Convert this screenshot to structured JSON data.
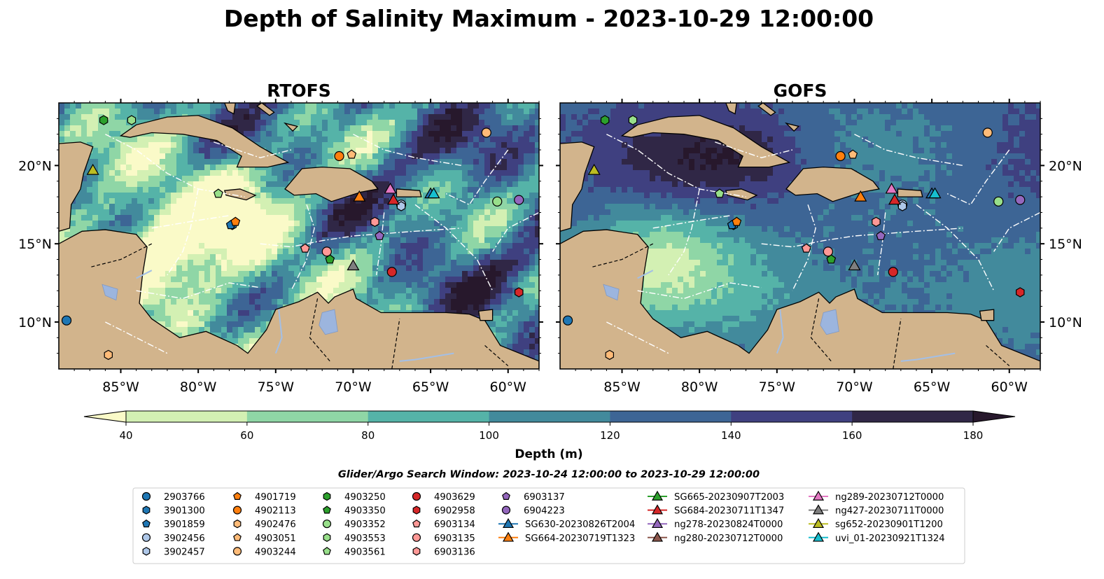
{
  "figure": {
    "title": "Depth of Salinity Maximum - 2023-10-29 12:00:00",
    "search_window": "Glider/Argo Search Window: 2023-10-24 12:00:00 to 2023-10-29 12:00:00"
  },
  "chart_data": [
    {
      "type": "heatmap",
      "title": "RTOFS",
      "map_extent": {
        "lon": [
          -89,
          -58
        ],
        "lat": [
          7,
          24
        ]
      },
      "xticks": [
        "85°W",
        "80°W",
        "75°W",
        "70°W",
        "65°W",
        "60°W"
      ],
      "yticks": [
        "10°N",
        "15°N",
        "20°N"
      ],
      "field_description": "gridded depth of salinity maximum (m)"
    },
    {
      "type": "heatmap",
      "title": "GOFS",
      "map_extent": {
        "lon": [
          -89,
          -58
        ],
        "lat": [
          7,
          24
        ]
      },
      "xticks": [
        "85°W",
        "80°W",
        "75°W",
        "70°W",
        "65°W",
        "60°W"
      ],
      "yticks": [
        "10°N",
        "15°N",
        "20°N"
      ],
      "field_description": "gridded depth of salinity maximum (m)"
    }
  ],
  "colorbar": {
    "label": "Depth (m)",
    "ticks": [
      "40",
      "60",
      "80",
      "100",
      "120",
      "140",
      "160",
      "180"
    ],
    "range": [
      40,
      180
    ],
    "extend": "both",
    "colors": [
      "#fafac8",
      "#d3f0b3",
      "#8fd6a6",
      "#55b3a8",
      "#428a9c",
      "#3d6595",
      "#3f4080",
      "#302746",
      "#27182c"
    ]
  },
  "map_colors": {
    "land": "#d2b48c",
    "lakes": "#9cb5de",
    "rivers": "#a3bfe6"
  },
  "platforms": [
    {
      "id": "2903766",
      "marker": "circle",
      "color": "#1f77b4",
      "lon": -88.5,
      "lat": 10.1
    },
    {
      "id": "3901300",
      "marker": "hexagon",
      "color": "#1f77b4",
      "lon": -77.8,
      "lat": 16.2
    },
    {
      "id": "3901859",
      "marker": "pentagon",
      "color": "#1f77b4",
      "lon": -77.9,
      "lat": 16.2
    },
    {
      "id": "3902456",
      "marker": "circle",
      "color": "#aec7e8",
      "lon": -66.9,
      "lat": 17.5
    },
    {
      "id": "3902457",
      "marker": "hexagon",
      "color": "#aec7e8",
      "lon": -66.9,
      "lat": 17.4
    },
    {
      "id": "4901719",
      "marker": "pentagon",
      "color": "#ff7f0e",
      "lon": -77.6,
      "lat": 16.4
    },
    {
      "id": "4902113",
      "marker": "circle",
      "color": "#ff7f0e",
      "lon": -70.9,
      "lat": 20.6
    },
    {
      "id": "4902476",
      "marker": "hexagon",
      "color": "#ffbb78",
      "lon": -85.8,
      "lat": 7.9
    },
    {
      "id": "4903051",
      "marker": "pentagon",
      "color": "#ffbb78",
      "lon": -70.1,
      "lat": 20.7
    },
    {
      "id": "4903244",
      "marker": "circle",
      "color": "#ffbb78",
      "lon": -61.4,
      "lat": 22.1
    },
    {
      "id": "4903250",
      "marker": "hexagon",
      "color": "#2ca02c",
      "lon": -86.1,
      "lat": 22.9
    },
    {
      "id": "4903350",
      "marker": "pentagon",
      "color": "#2ca02c",
      "lon": -71.5,
      "lat": 14.0
    },
    {
      "id": "4903352",
      "marker": "circle",
      "color": "#98df8a",
      "lon": -60.7,
      "lat": 17.7
    },
    {
      "id": "4903553",
      "marker": "hexagon",
      "color": "#98df8a",
      "lon": -84.3,
      "lat": 22.9
    },
    {
      "id": "4903561",
      "marker": "pentagon",
      "color": "#98df8a",
      "lon": -78.7,
      "lat": 18.2
    },
    {
      "id": "4903629",
      "marker": "circle",
      "color": "#d62728",
      "lon": -67.5,
      "lat": 13.2
    },
    {
      "id": "6902958",
      "marker": "hexagon",
      "color": "#d62728",
      "lon": -59.3,
      "lat": 11.9
    },
    {
      "id": "6903134",
      "marker": "pentagon",
      "color": "#ff9896",
      "lon": -73.1,
      "lat": 14.7
    },
    {
      "id": "6903135",
      "marker": "circle",
      "color": "#ff9896",
      "lon": -71.7,
      "lat": 14.5
    },
    {
      "id": "6903136",
      "marker": "hexagon",
      "color": "#ff9896",
      "lon": -68.6,
      "lat": 16.4
    },
    {
      "id": "6903137",
      "marker": "pentagon",
      "color": "#9467bd",
      "lon": -68.3,
      "lat": 15.5
    },
    {
      "id": "6904223",
      "marker": "circle",
      "color": "#9467bd",
      "lon": -59.3,
      "lat": 17.8
    }
  ],
  "gliders": [
    {
      "id": "SG630-20230826T2004",
      "color": "#1f77b4",
      "lon": -65.0,
      "lat": 18.2
    },
    {
      "id": "SG664-20230719T1323",
      "color": "#ff7f0e",
      "lon": -69.6,
      "lat": 18.0
    },
    {
      "id": "SG665-20230907T2003",
      "color": "#2ca02c",
      "lon": null,
      "lat": null
    },
    {
      "id": "SG684-20230711T1347",
      "color": "#d62728",
      "lon": -67.4,
      "lat": 17.8
    },
    {
      "id": "ng278-20230824T0000",
      "color": "#9467bd",
      "lon": null,
      "lat": null
    },
    {
      "id": "ng280-20230712T0000",
      "color": "#8c564b",
      "lon": null,
      "lat": null
    },
    {
      "id": "ng289-20230712T0000",
      "color": "#e377c2",
      "lon": -67.6,
      "lat": 18.5
    },
    {
      "id": "ng427-20230711T0000",
      "color": "#7f7f7f",
      "lon": -70.0,
      "lat": 13.6
    },
    {
      "id": "sg652-20230901T1200",
      "color": "#bcbd22",
      "lon": -86.8,
      "lat": 19.7
    },
    {
      "id": "uvi_01-20230921T1324",
      "color": "#17becf",
      "lon": -64.8,
      "lat": 18.2
    }
  ]
}
